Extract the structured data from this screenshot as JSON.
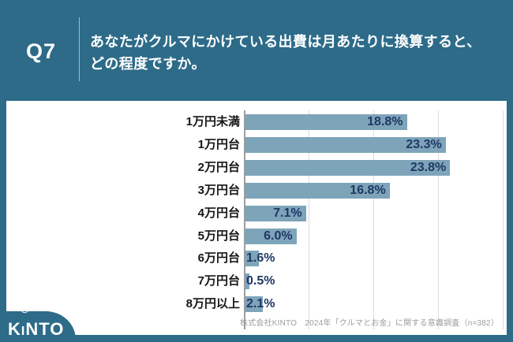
{
  "header": {
    "q_label": "Q7",
    "question_line1": "あなたがクルマにかけている出費は月あたりに換算すると、",
    "question_line2": "どの程度ですか。"
  },
  "chart_data": {
    "type": "bar",
    "orientation": "horizontal",
    "title": "あなたがクルマにかけている出費は月あたりに換算すると、どの程度ですか。",
    "categories": [
      "1万円未満",
      "1万円台",
      "2万円台",
      "3万円台",
      "4万円台",
      "5万円台",
      "6万円台",
      "7万円台",
      "8万円以上"
    ],
    "values": [
      18.8,
      23.3,
      23.8,
      16.8,
      7.1,
      6.0,
      1.6,
      0.5,
      2.1
    ],
    "value_labels": [
      "18.8%",
      "23.3%",
      "23.8%",
      "16.8%",
      "7.1%",
      "6.0%",
      "1.6%",
      "0.5%",
      "2.1%"
    ],
    "unit": "%",
    "xlabel": "",
    "ylabel": "",
    "xlim": [
      0,
      30
    ],
    "grid": true,
    "grid_interval": 7.5,
    "legend_position": "none",
    "bar_color": "#7EA4BA",
    "value_label_color": "#1F3864",
    "sample_note": "n=382"
  },
  "footer": {
    "source": "株式会社KINTO　2024年「クルマとお金」に関する意識調査（n=382）"
  },
  "logo": {
    "text": "KINTO"
  },
  "colors": {
    "background": "#2D6B89",
    "card": "#FFFFFF",
    "bar": "#7EA4BA",
    "value_text": "#1F3864",
    "category_text": "#151515",
    "gridline": "#DCDCDC",
    "axis": "#9E9E9E",
    "source_text": "#9C9C9C"
  }
}
